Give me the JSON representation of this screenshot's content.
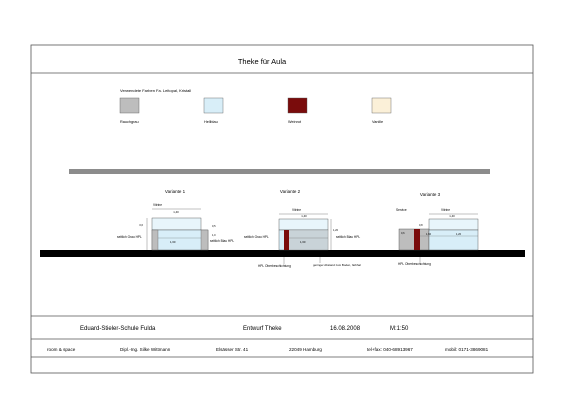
{
  "title": "Theke   für   Aula",
  "legend": {
    "caption": "Verwendete Farben Fa. Leitopal, Kristall",
    "colors": [
      {
        "label": "Rauchgrau",
        "hex": "#bdbdbd"
      },
      {
        "label": "Hellblau",
        "hex": "#d8eef8"
      },
      {
        "label": "Weinrot",
        "hex": "#7a0c0c"
      },
      {
        "label": "Vanille",
        "hex": "#fbf0d8"
      }
    ]
  },
  "variants": [
    {
      "label": "Variante 1",
      "notes": [
        "Vitrine",
        "seitlich Grau HPL",
        "seitlich Blau HPL"
      ],
      "dims": [
        "1,40",
        "1,60",
        "0,6",
        "0,5",
        "1,0"
      ]
    },
    {
      "label": "Variante 2",
      "notes": [
        "Vitrine",
        "seitlich Grau HPL",
        "seitlich Blau HPL",
        "HPL Oberbeschichtung",
        "geringer Abstand zum Boden, farbhal"
      ],
      "dims": [
        "1,40",
        "1,60",
        "1,20"
      ]
    },
    {
      "label": "Variante 3",
      "notes": [
        "Service",
        "Vitrine",
        "HPL Oberbeschichtung"
      ],
      "dims": [
        "1,40",
        "0,8",
        "1,60",
        "0,6",
        "1,20"
      ]
    }
  ],
  "titleblock": {
    "school": "Eduard-Stieler-Schule Fulda",
    "drawing": "Entwurf Theke",
    "date": "16.08.2008",
    "scale": "M:1:50",
    "firm": "room & space",
    "architect": "Dipl.-Ing. Silke Wittmann",
    "street": "Elsässer Str. 41",
    "city": "22049 Hamburg",
    "phone": "tel+fax: 040-68913967",
    "mobile": "mobil: 0171-3869081"
  }
}
